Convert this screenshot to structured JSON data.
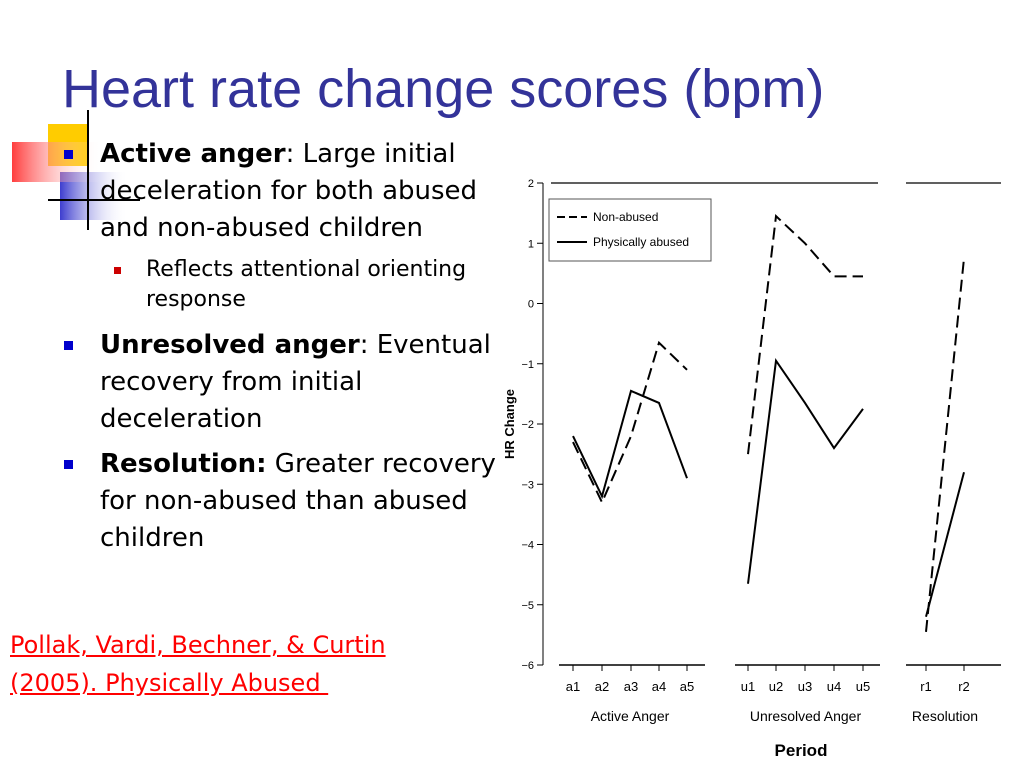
{
  "slide": {
    "title": "Heart rate change scores (bpm)",
    "bullets": [
      {
        "bold": "Active anger",
        "punct": ":",
        "text": " Large initial deceleration for both abused and non-abused children",
        "sub": [
          "Reflects attentional orienting response"
        ]
      },
      {
        "bold": "Unresolved anger",
        "punct": ":",
        "text": " Eventual recovery from initial deceleration",
        "sub": []
      },
      {
        "bold": "Resolution:",
        "punct": "",
        "text": " Greater recovery for non-abused than abused children",
        "sub": []
      }
    ],
    "citation": [
      "Pollak, Vardi, Bechner, & Curtin",
      "(2005). Physically Abused "
    ]
  },
  "colors": {
    "title": "#333399",
    "bullet": "#0000cc",
    "sub_bullet": "#cc0000",
    "citation": "#ff0000"
  },
  "chart_data": {
    "type": "line",
    "ylabel": "HR Change",
    "xlabel": "Period",
    "ylim": [
      -6,
      2
    ],
    "yticks": [
      2,
      1,
      0,
      -1,
      -2,
      -3,
      -4,
      -5,
      -6
    ],
    "legend": {
      "placement": "top-left"
    },
    "groups": [
      {
        "label": "Active Anger",
        "categories": [
          "a1",
          "a2",
          "a3",
          "a4",
          "a5"
        ]
      },
      {
        "label": "Unresolved Anger",
        "categories": [
          "u1",
          "u2",
          "u3",
          "u4",
          "u5"
        ]
      },
      {
        "label": "Resolution",
        "categories": [
          "r1",
          "r2"
        ]
      }
    ],
    "series": [
      {
        "name": "Non-abused",
        "dash": true,
        "values": [
          [
            -2.3,
            -3.3,
            -2.2,
            -0.65,
            -1.1
          ],
          [
            -2.5,
            1.45,
            1.0,
            0.45,
            0.45
          ],
          [
            -5.45,
            0.75
          ]
        ]
      },
      {
        "name": "Physically abused",
        "dash": false,
        "values": [
          [
            -2.2,
            -3.2,
            -1.45,
            -1.65,
            -2.9
          ],
          [
            -4.65,
            -0.95,
            -1.65,
            -2.4,
            -1.75
          ],
          [
            -5.2,
            -2.8
          ]
        ]
      }
    ]
  }
}
